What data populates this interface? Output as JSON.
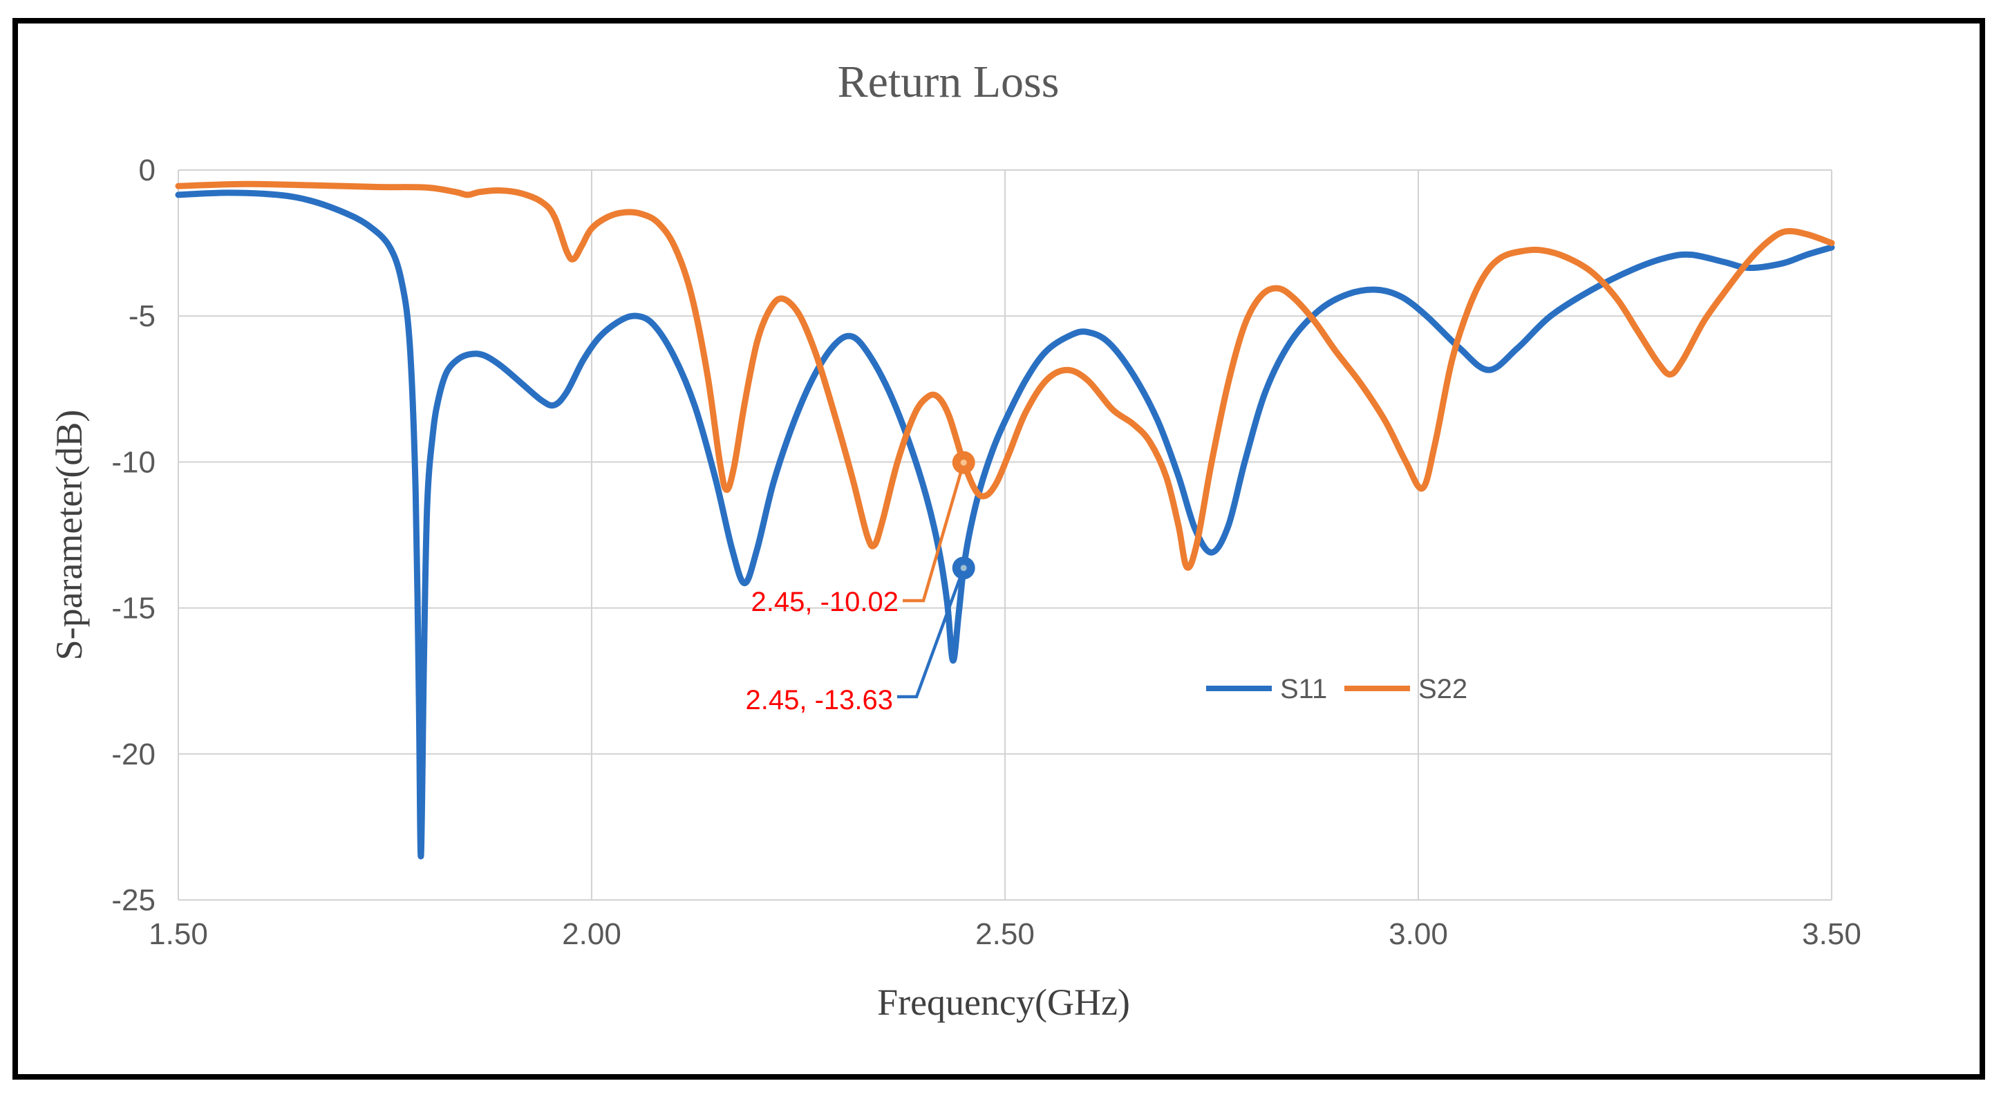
{
  "figure": {
    "title": "Return Loss",
    "background": "#FFFFFF",
    "border_color": "#000000",
    "title_color": "#595959",
    "gridline_color": "#D2D2D2",
    "tick_color": "#595959"
  },
  "legend": {
    "items": [
      {
        "label": "S11",
        "color": "#2A70C2"
      },
      {
        "label": "S22",
        "color": "#ED7D31"
      }
    ]
  },
  "chart_data": {
    "type": "line",
    "title": "Return Loss",
    "xlabel": "Frequency(GHz)",
    "ylabel": "S-parameter(dB)",
    "xlim": [
      1.5,
      3.5
    ],
    "ylim": [
      -25,
      0
    ],
    "grid": true,
    "legend_position": "center-right-inside",
    "x_ticks": [
      "1.50",
      "2.00",
      "2.50",
      "3.00",
      "3.50"
    ],
    "x_tick_values": [
      1.5,
      2.0,
      2.5,
      3.0,
      3.5
    ],
    "y_ticks": [
      "0",
      "-5",
      "-10",
      "-15",
      "-20",
      "-25"
    ],
    "y_tick_values": [
      0,
      -5,
      -10,
      -15,
      -20,
      -25
    ],
    "annotation_color": "#FF0000",
    "series": [
      {
        "name": "S11",
        "color": "#2A70C2",
        "points": [
          [
            1.5,
            -0.85
          ],
          [
            1.56,
            -0.78
          ],
          [
            1.62,
            -0.85
          ],
          [
            1.66,
            -1.05
          ],
          [
            1.7,
            -1.45
          ],
          [
            1.73,
            -1.9
          ],
          [
            1.755,
            -2.6
          ],
          [
            1.77,
            -3.8
          ],
          [
            1.78,
            -6.0
          ],
          [
            1.787,
            -11.0
          ],
          [
            1.791,
            -18.0
          ],
          [
            1.7935,
            -23.5
          ],
          [
            1.797,
            -17.0
          ],
          [
            1.801,
            -11.5
          ],
          [
            1.808,
            -9.0
          ],
          [
            1.815,
            -7.8
          ],
          [
            1.825,
            -6.9
          ],
          [
            1.84,
            -6.45
          ],
          [
            1.855,
            -6.3
          ],
          [
            1.87,
            -6.35
          ],
          [
            1.89,
            -6.7
          ],
          [
            1.915,
            -7.3
          ],
          [
            1.94,
            -7.9
          ],
          [
            1.955,
            -8.05
          ],
          [
            1.97,
            -7.6
          ],
          [
            1.99,
            -6.5
          ],
          [
            2.01,
            -5.7
          ],
          [
            2.035,
            -5.15
          ],
          [
            2.055,
            -5.0
          ],
          [
            2.075,
            -5.3
          ],
          [
            2.1,
            -6.4
          ],
          [
            2.125,
            -8.1
          ],
          [
            2.15,
            -10.6
          ],
          [
            2.17,
            -13.0
          ],
          [
            2.185,
            -14.15
          ],
          [
            2.2,
            -13.0
          ],
          [
            2.22,
            -10.7
          ],
          [
            2.245,
            -8.6
          ],
          [
            2.27,
            -7.0
          ],
          [
            2.295,
            -5.95
          ],
          [
            2.315,
            -5.7
          ],
          [
            2.335,
            -6.3
          ],
          [
            2.36,
            -7.6
          ],
          [
            2.385,
            -9.4
          ],
          [
            2.405,
            -11.2
          ],
          [
            2.42,
            -13.0
          ],
          [
            2.43,
            -14.8
          ],
          [
            2.437,
            -16.8
          ],
          [
            2.444,
            -15.2
          ],
          [
            2.45,
            -13.63
          ],
          [
            2.458,
            -12.3
          ],
          [
            2.47,
            -10.9
          ],
          [
            2.485,
            -9.6
          ],
          [
            2.5,
            -8.6
          ],
          [
            2.525,
            -7.2
          ],
          [
            2.55,
            -6.2
          ],
          [
            2.58,
            -5.65
          ],
          [
            2.6,
            -5.55
          ],
          [
            2.625,
            -5.9
          ],
          [
            2.655,
            -7.0
          ],
          [
            2.685,
            -8.6
          ],
          [
            2.71,
            -10.5
          ],
          [
            2.73,
            -12.3
          ],
          [
            2.75,
            -13.1
          ],
          [
            2.77,
            -12.2
          ],
          [
            2.79,
            -10.0
          ],
          [
            2.815,
            -7.6
          ],
          [
            2.845,
            -5.9
          ],
          [
            2.88,
            -4.8
          ],
          [
            2.915,
            -4.25
          ],
          [
            2.95,
            -4.1
          ],
          [
            2.98,
            -4.35
          ],
          [
            3.01,
            -5.0
          ],
          [
            3.05,
            -6.1
          ],
          [
            3.085,
            -6.85
          ],
          [
            3.12,
            -6.1
          ],
          [
            3.16,
            -5.0
          ],
          [
            3.21,
            -4.1
          ],
          [
            3.26,
            -3.4
          ],
          [
            3.3,
            -3.0
          ],
          [
            3.33,
            -2.9
          ],
          [
            3.37,
            -3.15
          ],
          [
            3.4,
            -3.35
          ],
          [
            3.44,
            -3.2
          ],
          [
            3.47,
            -2.9
          ],
          [
            3.5,
            -2.65
          ]
        ]
      },
      {
        "name": "S22",
        "color": "#ED7D31",
        "points": [
          [
            1.5,
            -0.55
          ],
          [
            1.58,
            -0.48
          ],
          [
            1.66,
            -0.52
          ],
          [
            1.74,
            -0.58
          ],
          [
            1.8,
            -0.6
          ],
          [
            1.835,
            -0.75
          ],
          [
            1.85,
            -0.85
          ],
          [
            1.865,
            -0.75
          ],
          [
            1.89,
            -0.7
          ],
          [
            1.915,
            -0.8
          ],
          [
            1.94,
            -1.1
          ],
          [
            1.955,
            -1.6
          ],
          [
            1.97,
            -2.8
          ],
          [
            1.978,
            -3.05
          ],
          [
            1.988,
            -2.6
          ],
          [
            2.0,
            -2.0
          ],
          [
            2.02,
            -1.6
          ],
          [
            2.04,
            -1.45
          ],
          [
            2.06,
            -1.5
          ],
          [
            2.08,
            -1.8
          ],
          [
            2.1,
            -2.6
          ],
          [
            2.12,
            -4.2
          ],
          [
            2.14,
            -7.0
          ],
          [
            2.155,
            -10.0
          ],
          [
            2.163,
            -10.95
          ],
          [
            2.172,
            -10.2
          ],
          [
            2.185,
            -8.0
          ],
          [
            2.2,
            -5.9
          ],
          [
            2.215,
            -4.8
          ],
          [
            2.23,
            -4.4
          ],
          [
            2.25,
            -4.9
          ],
          [
            2.27,
            -6.2
          ],
          [
            2.29,
            -8.0
          ],
          [
            2.315,
            -10.5
          ],
          [
            2.333,
            -12.5
          ],
          [
            2.342,
            -12.85
          ],
          [
            2.352,
            -12.0
          ],
          [
            2.37,
            -10.0
          ],
          [
            2.39,
            -8.4
          ],
          [
            2.405,
            -7.8
          ],
          [
            2.418,
            -7.75
          ],
          [
            2.432,
            -8.4
          ],
          [
            2.45,
            -10.02
          ],
          [
            2.465,
            -11.0
          ],
          [
            2.477,
            -11.15
          ],
          [
            2.49,
            -10.7
          ],
          [
            2.505,
            -9.7
          ],
          [
            2.525,
            -8.3
          ],
          [
            2.55,
            -7.2
          ],
          [
            2.575,
            -6.85
          ],
          [
            2.6,
            -7.2
          ],
          [
            2.63,
            -8.2
          ],
          [
            2.655,
            -8.7
          ],
          [
            2.675,
            -9.3
          ],
          [
            2.695,
            -10.5
          ],
          [
            2.71,
            -12.2
          ],
          [
            2.72,
            -13.6
          ],
          [
            2.732,
            -12.8
          ],
          [
            2.75,
            -10.0
          ],
          [
            2.77,
            -7.3
          ],
          [
            2.79,
            -5.3
          ],
          [
            2.81,
            -4.3
          ],
          [
            2.83,
            -4.05
          ],
          [
            2.85,
            -4.4
          ],
          [
            2.875,
            -5.2
          ],
          [
            2.9,
            -6.2
          ],
          [
            2.93,
            -7.3
          ],
          [
            2.96,
            -8.6
          ],
          [
            2.985,
            -10.0
          ],
          [
            3.005,
            -10.9
          ],
          [
            3.02,
            -9.4
          ],
          [
            3.04,
            -6.6
          ],
          [
            3.06,
            -4.8
          ],
          [
            3.08,
            -3.6
          ],
          [
            3.1,
            -3.0
          ],
          [
            3.125,
            -2.78
          ],
          [
            3.15,
            -2.75
          ],
          [
            3.18,
            -3.0
          ],
          [
            3.21,
            -3.5
          ],
          [
            3.24,
            -4.4
          ],
          [
            3.265,
            -5.5
          ],
          [
            3.29,
            -6.6
          ],
          [
            3.305,
            -7.0
          ],
          [
            3.32,
            -6.5
          ],
          [
            3.345,
            -5.2
          ],
          [
            3.37,
            -4.2
          ],
          [
            3.4,
            -3.1
          ],
          [
            3.425,
            -2.4
          ],
          [
            3.445,
            -2.1
          ],
          [
            3.47,
            -2.2
          ],
          [
            3.5,
            -2.5
          ]
        ]
      }
    ],
    "markers": [
      {
        "series": "S22",
        "series_index": 1,
        "x": 2.45,
        "y": -10.02,
        "label": "2.45, -10.02"
      },
      {
        "series": "S11",
        "series_index": 0,
        "x": 2.45,
        "y": -13.63,
        "label": "2.45, -13.63"
      }
    ]
  }
}
